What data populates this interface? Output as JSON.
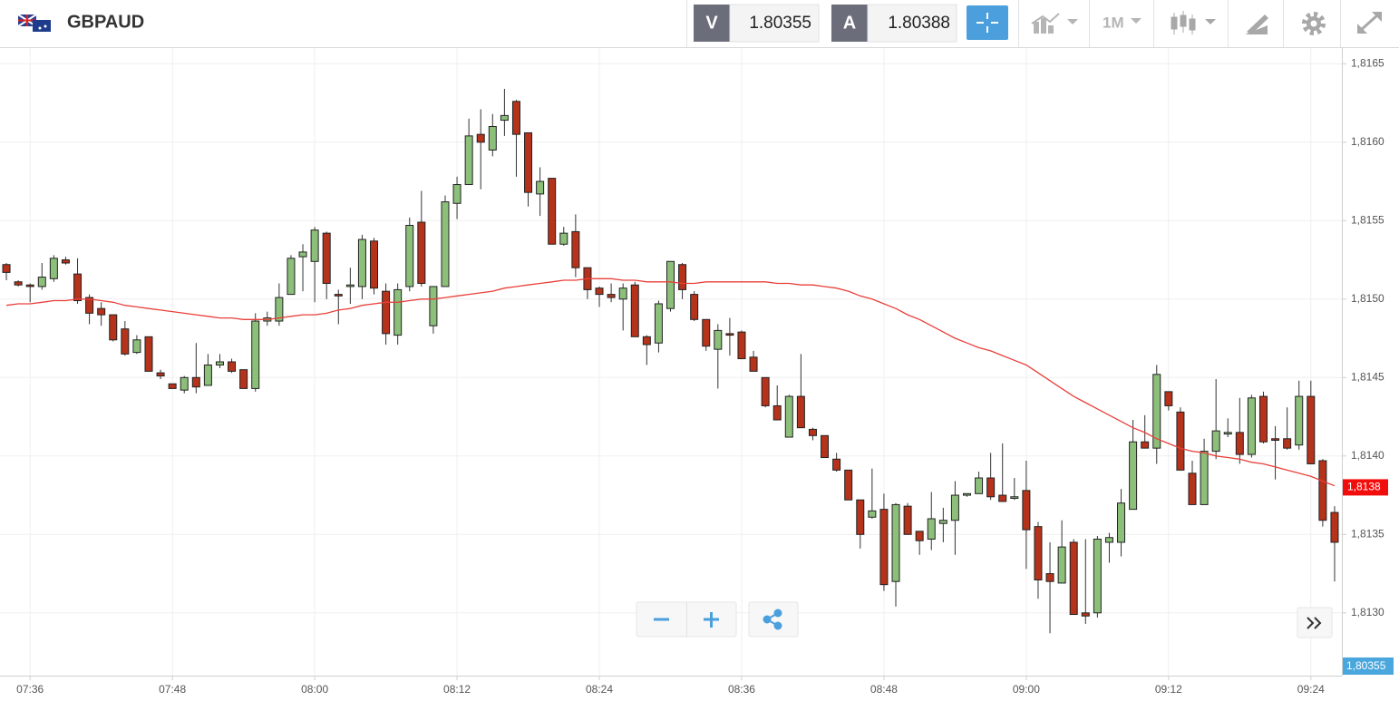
{
  "header": {
    "symbol": "GBPAUD",
    "bid_letter": "V",
    "bid": "1.80355",
    "ask_letter": "A",
    "ask": "1.80388",
    "timeframe": "1M"
  },
  "chart_data": {
    "type": "candlestick",
    "categories": [
      null,
      null,
      "07:36",
      null,
      null,
      null,
      null,
      null,
      null,
      null,
      null,
      null,
      null,
      null,
      "07:48",
      null,
      null,
      null,
      null,
      null,
      null,
      null,
      null,
      null,
      null,
      null,
      "08:00",
      null,
      null,
      null,
      null,
      null,
      null,
      null,
      null,
      null,
      null,
      null,
      "08:12",
      null,
      null,
      null,
      null,
      null,
      null,
      null,
      null,
      null,
      null,
      null,
      "08:24",
      null,
      null,
      null,
      null,
      null,
      null,
      null,
      null,
      null,
      null,
      null,
      "08:36",
      null,
      null,
      null,
      null,
      null,
      null,
      null,
      null,
      null,
      null,
      null,
      "08:48",
      null,
      null,
      null,
      null,
      null,
      null,
      null,
      null,
      null,
      null,
      null,
      "09:00",
      null,
      null,
      null,
      null,
      null,
      null,
      null,
      null,
      null,
      null,
      null,
      "09:12",
      null,
      null,
      null,
      null,
      null,
      null,
      null,
      null,
      null,
      null,
      null,
      "09:24",
      null,
      null
    ],
    "open": [
      1.81522,
      1.81511,
      1.81509,
      1.81508,
      1.81513,
      1.81525,
      1.81516,
      1.81501,
      1.81494,
      1.8149,
      1.81481,
      1.81466,
      1.81476,
      1.81453,
      1.81446,
      1.81442,
      1.8145,
      1.81445,
      1.81458,
      1.8146,
      1.81455,
      1.81443,
      1.81486,
      1.81486,
      1.81503,
      1.81527,
      1.81524,
      1.81542,
      1.81503,
      1.81508,
      1.81508,
      1.81537,
      1.81505,
      1.81477,
      1.81508,
      1.81549,
      1.81483,
      1.81508,
      1.81561,
      1.81573,
      1.81605,
      1.81595,
      1.81614,
      1.81626,
      1.81606,
      1.81567,
      1.81577,
      1.81535,
      1.81543,
      1.8152,
      1.81507,
      1.81503,
      1.815,
      1.81509,
      1.81476,
      1.81472,
      1.81494,
      1.81522,
      1.81503,
      1.81487,
      1.81468,
      1.81478,
      1.81479,
      1.81463,
      1.8145,
      1.81432,
      1.81412,
      1.81438,
      1.81417,
      1.81413,
      1.81398,
      1.81391,
      1.81372,
      1.81361,
      1.81366,
      1.8132,
      1.81368,
      1.81352,
      1.81347,
      1.81357,
      1.81359,
      1.81375,
      1.81376,
      1.81386,
      1.81375,
      1.81373,
      1.81378,
      1.81355,
      1.81325,
      1.81319,
      1.81345,
      1.813,
      1.813,
      1.81345,
      1.81345,
      1.81366,
      1.81409,
      1.81405,
      1.81441,
      1.81428,
      1.81389,
      1.81369,
      1.81403,
      1.81414,
      1.81415,
      1.81401,
      1.81438,
      1.81411,
      1.81411,
      1.81407,
      1.81438,
      1.81397,
      1.81364
    ],
    "high": [
      1.81523,
      1.81512,
      1.8151,
      1.81523,
      1.81528,
      1.81527,
      1.81526,
      1.81503,
      1.81498,
      1.8149,
      1.81486,
      1.81477,
      1.81476,
      1.81455,
      1.81446,
      1.81451,
      1.81472,
      1.81465,
      1.81465,
      1.81462,
      1.81455,
      1.81491,
      1.81492,
      1.8151,
      1.81528,
      1.81535,
      1.81546,
      1.81543,
      1.81506,
      1.8152,
      1.81541,
      1.81539,
      1.8151,
      1.8151,
      1.81552,
      1.81569,
      1.81508,
      1.81566,
      1.81578,
      1.81615,
      1.81621,
      1.81618,
      1.81634,
      1.81627,
      1.81606,
      1.81584,
      1.81577,
      1.81546,
      1.81554,
      1.8152,
      1.81508,
      1.8151,
      1.8151,
      1.81511,
      1.81477,
      1.81499,
      1.81524,
      1.81523,
      1.81505,
      1.81487,
      1.81484,
      1.81488,
      1.8148,
      1.81467,
      1.8145,
      1.81445,
      1.81439,
      1.81465,
      1.81418,
      1.81413,
      1.81402,
      1.81391,
      1.81372,
      1.81392,
      1.81376,
      1.8137,
      1.8137,
      1.81352,
      1.81377,
      1.81367,
      1.81384,
      1.81376,
      1.8139,
      1.81402,
      1.81408,
      1.81386,
      1.81397,
      1.81358,
      1.81345,
      1.81359,
      1.81347,
      1.81347,
      1.81349,
      1.81351,
      1.81379,
      1.81423,
      1.81426,
      1.81458,
      1.81441,
      1.81431,
      1.81397,
      1.81411,
      1.81449,
      1.81424,
      1.81437,
      1.81439,
      1.81441,
      1.81419,
      1.81431,
      1.81448,
      1.81448,
      1.81398,
      1.81368
    ],
    "low": [
      1.81512,
      1.81508,
      1.81498,
      1.81506,
      1.81511,
      1.81522,
      1.81497,
      1.81484,
      1.81483,
      1.81473,
      1.81464,
      1.81465,
      1.81454,
      1.81449,
      1.81443,
      1.8144,
      1.8144,
      1.81445,
      1.81456,
      1.81453,
      1.81443,
      1.81441,
      1.81483,
      1.81483,
      1.81503,
      1.81505,
      1.81498,
      1.815,
      1.81484,
      1.81497,
      1.815,
      1.81503,
      1.81471,
      1.81471,
      1.81505,
      1.81508,
      1.81478,
      1.81508,
      1.81551,
      1.81573,
      1.8157,
      1.81591,
      1.81604,
      1.81578,
      1.81559,
      1.81553,
      1.81535,
      1.81534,
      1.81514,
      1.815,
      1.81495,
      1.81498,
      1.8148,
      1.81476,
      1.81458,
      1.81466,
      1.81492,
      1.815,
      1.81486,
      1.81467,
      1.81443,
      1.81464,
      1.81462,
      1.81454,
      1.81431,
      1.81423,
      1.81412,
      1.81418,
      1.8141,
      1.81399,
      1.8139,
      1.81372,
      1.81341,
      1.8136,
      1.81314,
      1.81304,
      1.8135,
      1.81337,
      1.8134,
      1.81345,
      1.81337,
      1.81374,
      1.81376,
      1.81372,
      1.81371,
      1.81372,
      1.81328,
      1.81309,
      1.81287,
      1.81319,
      1.81299,
      1.81293,
      1.81297,
      1.81332,
      1.81336,
      1.81366,
      1.81405,
      1.81395,
      1.81429,
      1.81391,
      1.81369,
      1.81369,
      1.81398,
      1.81412,
      1.81395,
      1.81399,
      1.81408,
      1.81385,
      1.81404,
      1.81404,
      1.81395,
      1.81355,
      1.8132
    ],
    "close": [
      1.81517,
      1.81509,
      1.81508,
      1.81514,
      1.81526,
      1.81523,
      1.81499,
      1.81491,
      1.8149,
      1.81474,
      1.81465,
      1.81474,
      1.81454,
      1.81451,
      1.81443,
      1.8145,
      1.81444,
      1.81458,
      1.8146,
      1.81454,
      1.81443,
      1.81486,
      1.81488,
      1.81501,
      1.81526,
      1.8153,
      1.81544,
      1.8151,
      1.81502,
      1.81509,
      1.81538,
      1.81507,
      1.81478,
      1.81506,
      1.81547,
      1.8151,
      1.81508,
      1.81562,
      1.81573,
      1.81604,
      1.816,
      1.8161,
      1.81617,
      1.81605,
      1.81568,
      1.81575,
      1.81535,
      1.81542,
      1.8152,
      1.81506,
      1.81503,
      1.81501,
      1.81507,
      1.81476,
      1.81471,
      1.81497,
      1.81524,
      1.81506,
      1.81487,
      1.8147,
      1.8148,
      1.81477,
      1.81462,
      1.81454,
      1.81432,
      1.81423,
      1.81438,
      1.81418,
      1.81413,
      1.81399,
      1.81391,
      1.81372,
      1.8135,
      1.81365,
      1.81318,
      1.81369,
      1.8135,
      1.81346,
      1.8136,
      1.81359,
      1.81375,
      1.81376,
      1.81386,
      1.81374,
      1.81371,
      1.81374,
      1.81353,
      1.81321,
      1.8132,
      1.81342,
      1.81299,
      1.81298,
      1.81347,
      1.81348,
      1.8137,
      1.81409,
      1.81405,
      1.81452,
      1.81432,
      1.81391,
      1.81369,
      1.81403,
      1.81416,
      1.81415,
      1.81401,
      1.81437,
      1.81409,
      1.8141,
      1.81405,
      1.81438,
      1.81395,
      1.81359,
      1.81345
    ],
    "up_color": "#8cbf7a",
    "down_color": "#b5321b",
    "moving_average": {
      "color": "#e8403a",
      "values": [
        1.81496,
        1.81497,
        1.81497,
        1.81498,
        1.81499,
        1.81499,
        1.815,
        1.815,
        1.81499,
        1.81498,
        1.81496,
        1.81495,
        1.81494,
        1.81493,
        1.81492,
        1.81491,
        1.8149,
        1.81489,
        1.81488,
        1.81488,
        1.81487,
        1.81487,
        1.81487,
        1.81488,
        1.81489,
        1.8149,
        1.8149,
        1.81491,
        1.81493,
        1.81494,
        1.81496,
        1.81497,
        1.81498,
        1.81498,
        1.81499,
        1.815,
        1.815,
        1.81501,
        1.81502,
        1.81503,
        1.81504,
        1.81505,
        1.81507,
        1.81508,
        1.81509,
        1.8151,
        1.81511,
        1.81512,
        1.81512,
        1.81513,
        1.81513,
        1.81513,
        1.81512,
        1.81512,
        1.81511,
        1.81511,
        1.81511,
        1.8151,
        1.8151,
        1.81511,
        1.81511,
        1.81511,
        1.81511,
        1.81511,
        1.81511,
        1.8151,
        1.8151,
        1.81509,
        1.81509,
        1.81508,
        1.81507,
        1.81505,
        1.81502,
        1.815,
        1.81497,
        1.81494,
        1.8149,
        1.81487,
        1.81483,
        1.81479,
        1.81475,
        1.81472,
        1.81469,
        1.81467,
        1.81464,
        1.81461,
        1.81458,
        1.81453,
        1.81448,
        1.81443,
        1.81438,
        1.81434,
        1.8143,
        1.81426,
        1.81422,
        1.81418,
        1.81415,
        1.81411,
        1.81408,
        1.81405,
        1.81403,
        1.81402,
        1.814,
        1.81399,
        1.81398,
        1.81396,
        1.81395,
        1.81393,
        1.81391,
        1.81389,
        1.81387,
        1.81384,
        1.81381
      ]
    },
    "ylim": [
      1.8126,
      1.8166
    ],
    "yticks": [
      {
        "value": 1.813,
        "label": "1,8130"
      },
      {
        "value": 1.8135,
        "label": "1,8135"
      },
      {
        "value": 1.814,
        "label": "1,8140"
      },
      {
        "value": 1.8145,
        "label": "1,8145"
      },
      {
        "value": 1.815,
        "label": "1,8150"
      },
      {
        "value": 1.8155,
        "label": "1,8155"
      },
      {
        "value": 1.816,
        "label": "1,8160"
      },
      {
        "value": 1.8165,
        "label": "1,8165"
      }
    ],
    "grid": true,
    "last_price": {
      "value": 1.8138,
      "label": "1,8138",
      "color": "#f20d0d"
    },
    "bid_tag": "1,80355"
  }
}
